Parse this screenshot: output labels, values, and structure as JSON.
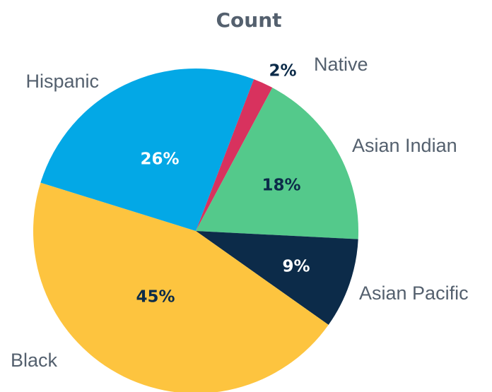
{
  "chart_data": {
    "type": "pie",
    "title": "Count",
    "categories": [
      "Native",
      "Asian Indian",
      "Asian Pacific",
      "Black",
      "Hispanic"
    ],
    "values": [
      2,
      18,
      9,
      45,
      26
    ],
    "value_labels": [
      "2%",
      "18%",
      "9%",
      "45%",
      "26%"
    ],
    "colors": [
      "#d8325e",
      "#54c98b",
      "#0c2b49",
      "#fdc43f",
      "#03a8e6"
    ]
  }
}
